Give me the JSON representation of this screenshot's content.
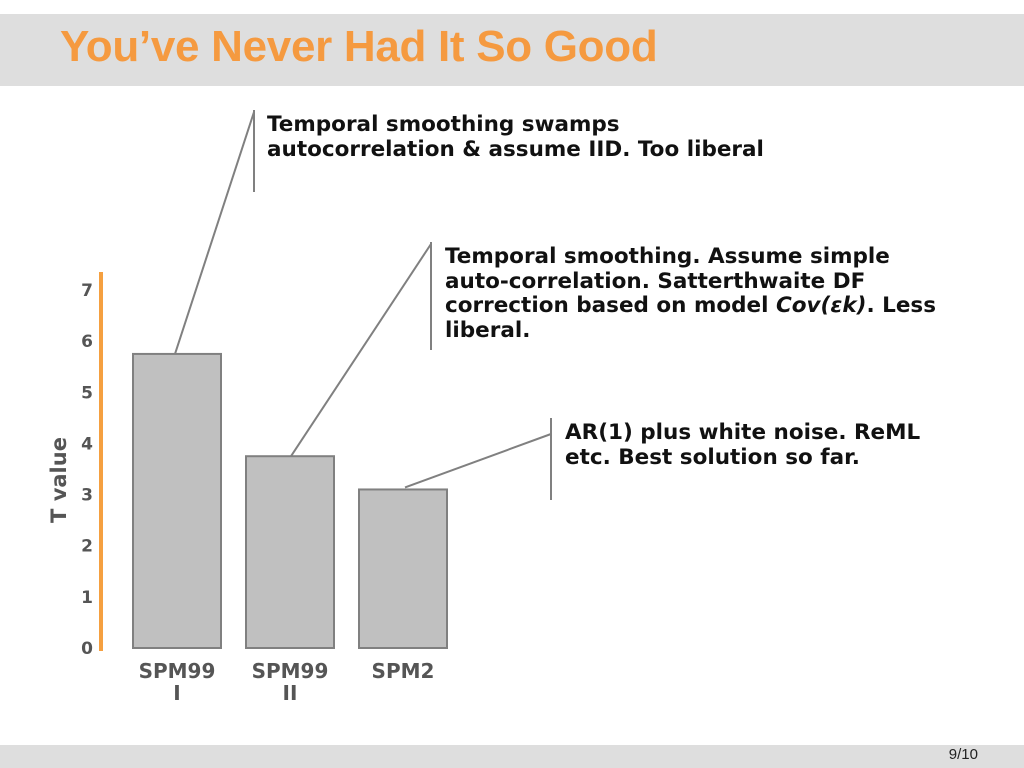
{
  "slide": {
    "title": "You’ve Never Had It So Good",
    "page_number": "9/10"
  },
  "annotations": [
    {
      "text": "Temporal smoothing swamps autocorrelation & assume IID. Too liberal"
    },
    {
      "text_before": "Temporal smoothing. Assume simple auto-correlation. Satterthwaite DF correction based on model ",
      "text_italic": "Cov(εk)",
      "text_after": ". Less liberal."
    },
    {
      "text": "AR(1) plus white noise. ReML etc. Best solution so far."
    }
  ],
  "colors": {
    "title": "#f59a40",
    "axis": "#f5a040",
    "bar_fill": "#c0c0c0",
    "bar_stroke": "#808080",
    "leader_line": "#808080"
  },
  "chart_data": {
    "type": "bar",
    "categories": [
      [
        "SPM99",
        "I"
      ],
      [
        "SPM99",
        "II"
      ],
      [
        "SPM2"
      ]
    ],
    "values": [
      5.75,
      3.75,
      3.1
    ],
    "ylabel": "T value",
    "xlabel": "",
    "ylim": [
      0,
      7
    ],
    "yticks": [
      0,
      1,
      2,
      3,
      4,
      5,
      6,
      7
    ],
    "grid": false
  }
}
